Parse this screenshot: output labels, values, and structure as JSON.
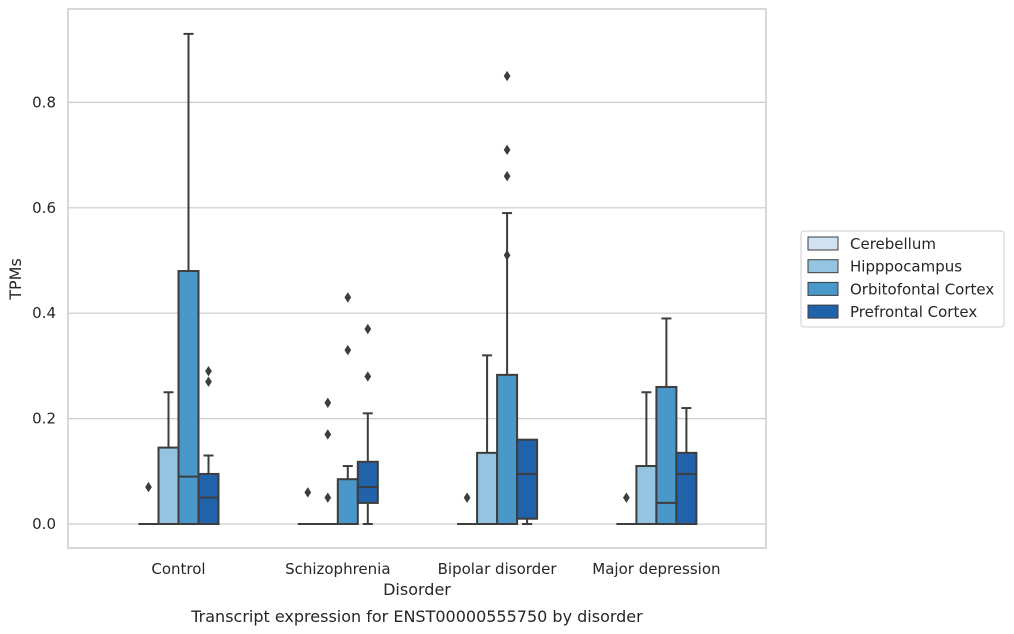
{
  "chart_data": {
    "type": "box",
    "caption": "Transcript expression for ENST00000555750 by disorder",
    "xlabel": "Disorder",
    "ylabel": "TPMs",
    "ylim": [
      -0.045,
      0.97
    ],
    "yticks": [
      0.0,
      0.2,
      0.4,
      0.6,
      0.8
    ],
    "ytick_labels": [
      "0.0",
      "0.2",
      "0.4",
      "0.6",
      "0.8"
    ],
    "grid": "horizontal",
    "legend_position": "center-right",
    "categories": [
      "Control",
      "Schizophrenia",
      "Bipolar disorder",
      "Major depression"
    ],
    "series": [
      {
        "name": "Cerebellum",
        "color": "#d0e1f2",
        "boxes": [
          {
            "whislo": 0.0,
            "q1": 0.0,
            "med": 0.0,
            "q3": 0.0,
            "whishi": 0.0,
            "fliers": [
              0.07
            ]
          },
          {
            "whislo": 0.0,
            "q1": 0.0,
            "med": 0.0,
            "q3": 0.0,
            "whishi": 0.0,
            "fliers": [
              0.06
            ]
          },
          {
            "whislo": 0.0,
            "q1": 0.0,
            "med": 0.0,
            "q3": 0.0,
            "whishi": 0.0,
            "fliers": [
              0.05
            ]
          },
          {
            "whislo": 0.0,
            "q1": 0.0,
            "med": 0.0,
            "q3": 0.0,
            "whishi": 0.0,
            "fliers": [
              0.05
            ]
          }
        ]
      },
      {
        "name": "Hipppocampus",
        "color": "#94c4df",
        "boxes": [
          {
            "whislo": 0.0,
            "q1": 0.0,
            "med": 0.0,
            "q3": 0.145,
            "whishi": 0.25,
            "fliers": []
          },
          {
            "whislo": 0.0,
            "q1": 0.0,
            "med": 0.0,
            "q3": 0.0,
            "whishi": 0.0,
            "fliers": [
              0.05,
              0.17,
              0.23
            ]
          },
          {
            "whislo": 0.0,
            "q1": 0.0,
            "med": 0.0,
            "q3": 0.135,
            "whishi": 0.32,
            "fliers": []
          },
          {
            "whislo": 0.0,
            "q1": 0.0,
            "med": 0.0,
            "q3": 0.11,
            "whishi": 0.25,
            "fliers": []
          }
        ]
      },
      {
        "name": "Orbitofontal Cortex",
        "color": "#4a98c9",
        "boxes": [
          {
            "whislo": 0.0,
            "q1": 0.0,
            "med": 0.09,
            "q3": 0.48,
            "whishi": 0.93,
            "fliers": []
          },
          {
            "whislo": 0.0,
            "q1": 0.0,
            "med": 0.0,
            "q3": 0.085,
            "whishi": 0.11,
            "fliers": [
              0.33,
              0.43
            ]
          },
          {
            "whislo": 0.0,
            "q1": 0.0,
            "med": 0.0,
            "q3": 0.283,
            "whishi": 0.59,
            "fliers": [
              0.51,
              0.66,
              0.71,
              0.85
            ]
          },
          {
            "whislo": 0.0,
            "q1": 0.0,
            "med": 0.04,
            "q3": 0.26,
            "whishi": 0.39,
            "fliers": []
          }
        ]
      },
      {
        "name": "Prefrontal Cortex",
        "color": "#2163aa",
        "boxes": [
          {
            "whislo": 0.0,
            "q1": 0.0,
            "med": 0.05,
            "q3": 0.095,
            "whishi": 0.13,
            "fliers": [
              0.27,
              0.29
            ]
          },
          {
            "whislo": 0.0,
            "q1": 0.04,
            "med": 0.07,
            "q3": 0.118,
            "whishi": 0.21,
            "fliers": [
              0.28,
              0.37
            ]
          },
          {
            "whislo": 0.0,
            "q1": 0.01,
            "med": 0.095,
            "q3": 0.16,
            "whishi": 0.16,
            "fliers": []
          },
          {
            "whislo": 0.0,
            "q1": 0.0,
            "med": 0.095,
            "q3": 0.135,
            "whishi": 0.22,
            "fliers": []
          }
        ]
      }
    ]
  }
}
